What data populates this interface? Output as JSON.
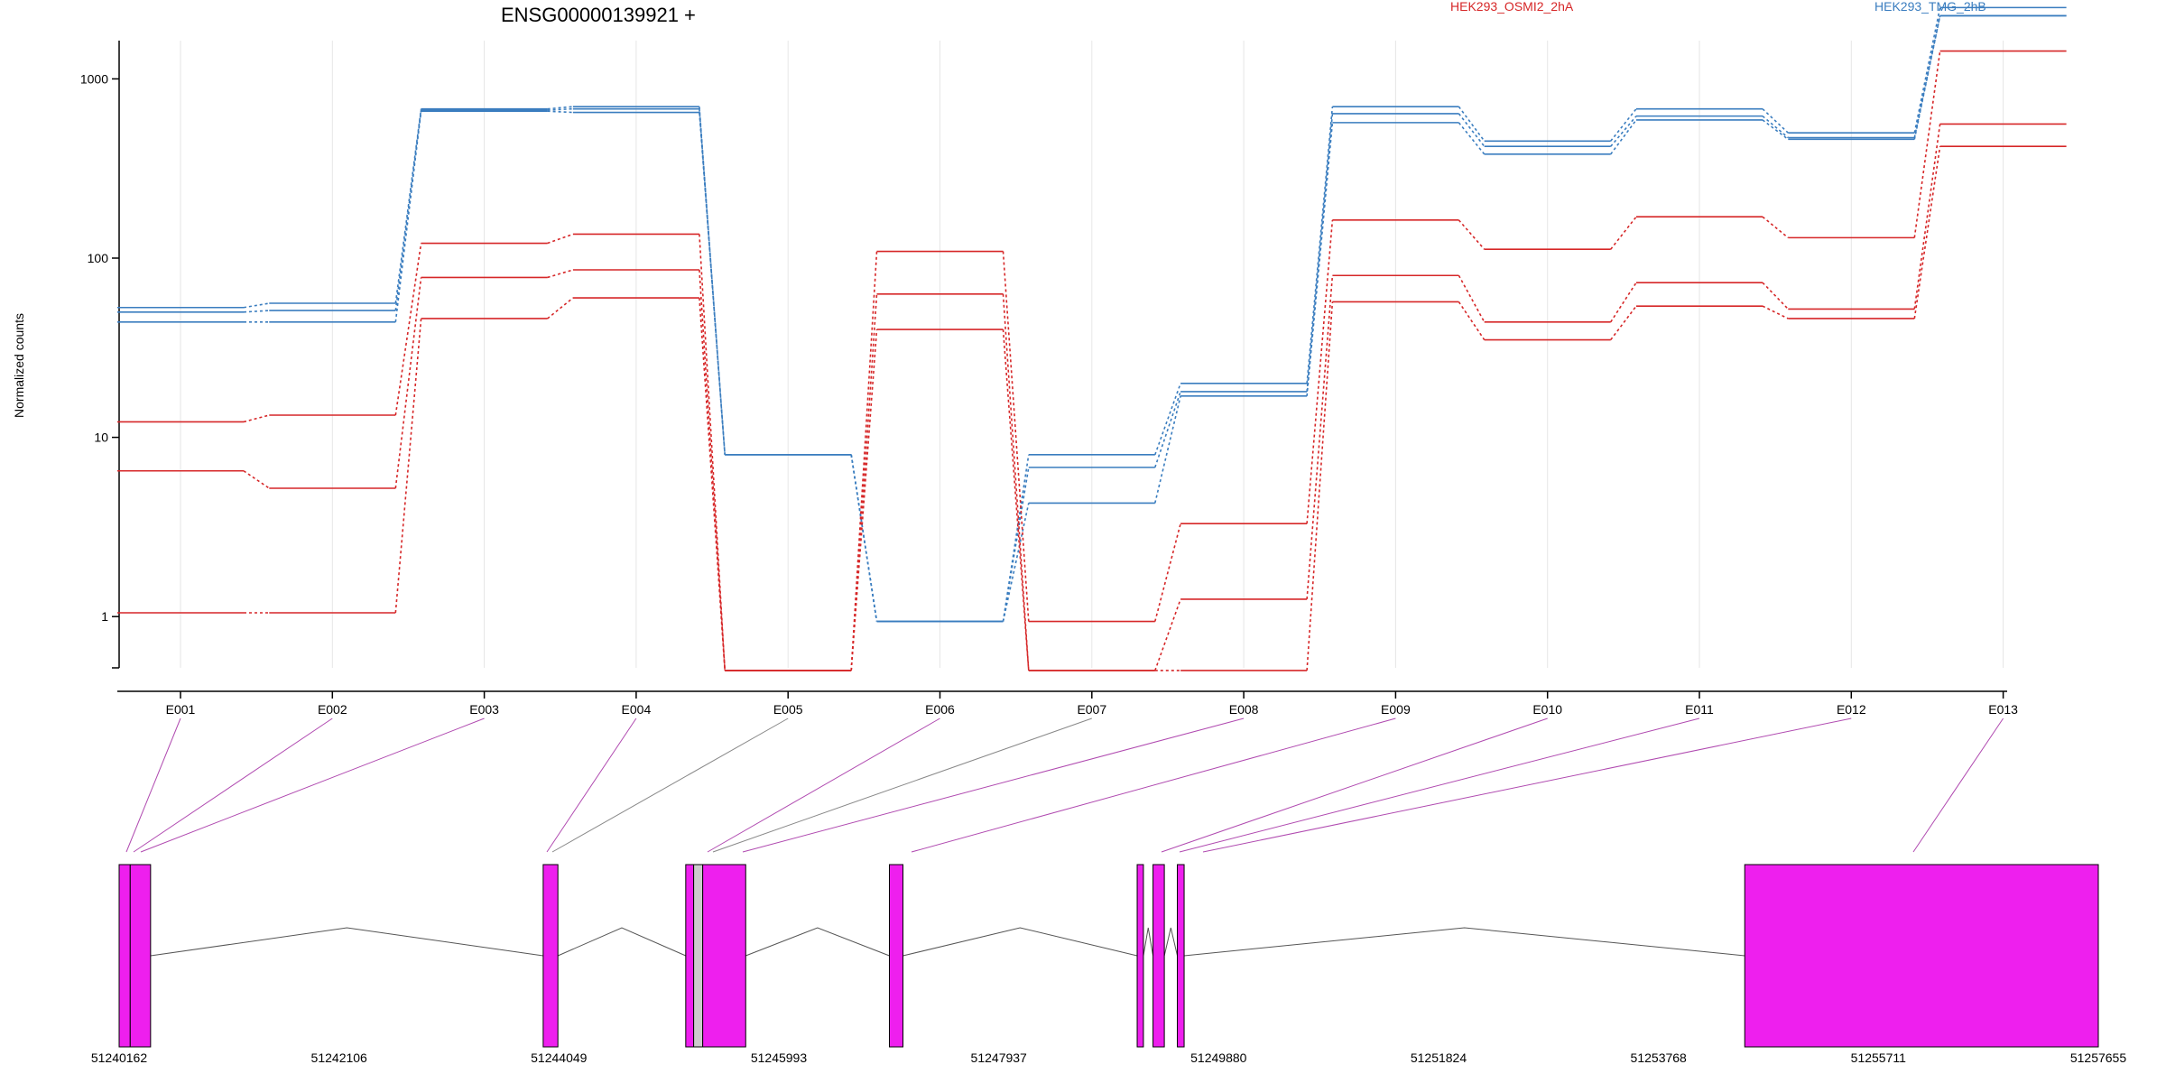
{
  "chart_data": {
    "type": "line",
    "title": "ENSG00000139921 +",
    "ylabel": "Normalized counts",
    "yscale": "log",
    "yticks": [
      1,
      10,
      100,
      1000
    ],
    "ytick_labels": [
      "1",
      "10",
      "100",
      "1000"
    ],
    "ylim": [
      0.5,
      3000
    ],
    "exons": [
      "E001",
      "E002",
      "E003",
      "E004",
      "E005",
      "E006",
      "E007",
      "E008",
      "E009",
      "E010",
      "E011",
      "E012",
      "E013"
    ],
    "legend": [
      {
        "name": "HEK293_OSMI2_2hA",
        "color": "#d62728"
      },
      {
        "name": "HEK293_TMG_2hB",
        "color": "#3a7dbf"
      }
    ],
    "grid": "vertical",
    "series": [
      {
        "group": "HEK293_TMG_2hB",
        "color": "#3a7dbf",
        "values": [
          53,
          56,
          680,
          700,
          8,
          0.94,
          8,
          20,
          700,
          450,
          680,
          500,
          2500
        ]
      },
      {
        "group": "HEK293_TMG_2hB",
        "color": "#3a7dbf",
        "values": [
          50,
          51,
          670,
          680,
          8,
          0.94,
          6.8,
          18,
          640,
          420,
          620,
          470,
          2250
        ]
      },
      {
        "group": "HEK293_TMG_2hB",
        "color": "#3a7dbf",
        "values": [
          44,
          44,
          660,
          650,
          8,
          0.94,
          4.3,
          17,
          570,
          380,
          590,
          460,
          2250
        ]
      },
      {
        "group": "HEK293_OSMI2_2hA",
        "color": "#d62728",
        "values": [
          12.2,
          13.3,
          121,
          136,
          0.5,
          109,
          0.94,
          3.3,
          163,
          112,
          170,
          130,
          1430
        ]
      },
      {
        "group": "HEK293_OSMI2_2hA",
        "color": "#d62728",
        "values": [
          6.5,
          5.2,
          78,
          86,
          0.5,
          63,
          0.5,
          1.25,
          80,
          44,
          73,
          52,
          560
        ]
      },
      {
        "group": "HEK293_OSMI2_2hA",
        "color": "#d62728",
        "values": [
          1.05,
          1.05,
          46,
          60,
          0.5,
          40,
          0.5,
          0.5,
          57,
          35,
          54,
          46,
          420
        ]
      }
    ],
    "gene_model": {
      "coords": [
        "51240162",
        "51242106",
        "51244049",
        "51245993",
        "51247937",
        "51249880",
        "51251824",
        "51253768",
        "51255711",
        "51257655"
      ],
      "range": [
        51240162,
        51257655
      ],
      "exon_color": "#ee1fee",
      "exon_blocks": [
        {
          "start": 51240162,
          "end": 51240260,
          "label": "E001"
        },
        {
          "start": 51240260,
          "end": 51240440,
          "label": "E002"
        },
        {
          "start": 51243910,
          "end": 51244040,
          "label": "E003"
        },
        {
          "start": 51245170,
          "end": 51245240,
          "label": "E004"
        },
        {
          "start": 51245240,
          "end": 51245320,
          "label": "E005",
          "fill": "#cccccc"
        },
        {
          "start": 51245320,
          "end": 51245700,
          "label": "E006"
        },
        {
          "start": 51246970,
          "end": 51247090,
          "label": "E008"
        },
        {
          "start": 51249160,
          "end": 51249215,
          "label": "E009"
        },
        {
          "start": 51249300,
          "end": 51249400,
          "label": "E010"
        },
        {
          "start": 51249515,
          "end": 51249575,
          "label": "E011"
        },
        {
          "start": 51254530,
          "end": 51257655,
          "label": "E013"
        }
      ],
      "introns": [
        [
          51240440,
          51243910
        ],
        [
          51244040,
          51245170
        ],
        [
          51245700,
          51246970
        ],
        [
          51247090,
          51249160
        ],
        [
          51249215,
          51249300
        ],
        [
          51249400,
          51249515
        ],
        [
          51249575,
          51254530
        ]
      ]
    }
  }
}
